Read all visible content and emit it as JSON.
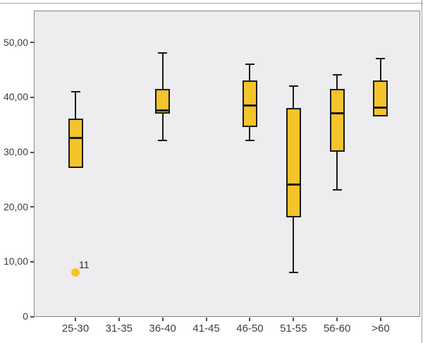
{
  "chart_data": {
    "type": "boxplot",
    "title": "",
    "xlabel": "",
    "ylabel": "",
    "legend": "none",
    "grid": false,
    "ylim": [
      0,
      56
    ],
    "y_ticks": [
      {
        "label": "0",
        "value": 0
      },
      {
        "label": "10,00",
        "value": 10
      },
      {
        "label": "20,00",
        "value": 20
      },
      {
        "label": "30,00",
        "value": 30
      },
      {
        "label": "40,00",
        "value": 40
      },
      {
        "label": "50,00",
        "value": 50
      }
    ],
    "categories": [
      "25-30",
      "31-35",
      "36-40",
      "41-45",
      "46-50",
      "51-55",
      "56-60",
      ">60"
    ],
    "boxes": [
      {
        "category": "25-30",
        "q1": 27,
        "median": 32.5,
        "q3": 36,
        "whisker_low": null,
        "whisker_high": 41
      },
      {
        "category": "31-35",
        "q1": null,
        "median": null,
        "q3": null,
        "whisker_low": null,
        "whisker_high": null
      },
      {
        "category": "36-40",
        "q1": 37,
        "median": 37.5,
        "q3": 41.5,
        "whisker_low": 32,
        "whisker_high": 48
      },
      {
        "category": "41-45",
        "q1": null,
        "median": null,
        "q3": null,
        "whisker_low": null,
        "whisker_high": null
      },
      {
        "category": "46-50",
        "q1": 34.5,
        "median": 38.5,
        "q3": 43,
        "whisker_low": 32,
        "whisker_high": 46
      },
      {
        "category": "51-55",
        "q1": 18,
        "median": 24,
        "q3": 38,
        "whisker_low": 8,
        "whisker_high": 42
      },
      {
        "category": "56-60",
        "q1": 30,
        "median": 37,
        "q3": 41.5,
        "whisker_low": 23,
        "whisker_high": 44
      },
      {
        "category": ">60",
        "q1": 36.5,
        "median": 38,
        "q3": 43,
        "whisker_low": null,
        "whisker_high": 47
      }
    ],
    "outliers": [
      {
        "category": "25-30",
        "category_index": 0,
        "value": 8,
        "label": "11"
      }
    ],
    "colors": {
      "box_fill": "#F5C32C",
      "box_border": "#1A1A1A",
      "outlier_fill": "#F9C32B",
      "plot_background": "#EDEDF0",
      "plot_border": "#848484",
      "tick_color": "#4D4D4D",
      "label_text": "#3E3E3E"
    }
  }
}
